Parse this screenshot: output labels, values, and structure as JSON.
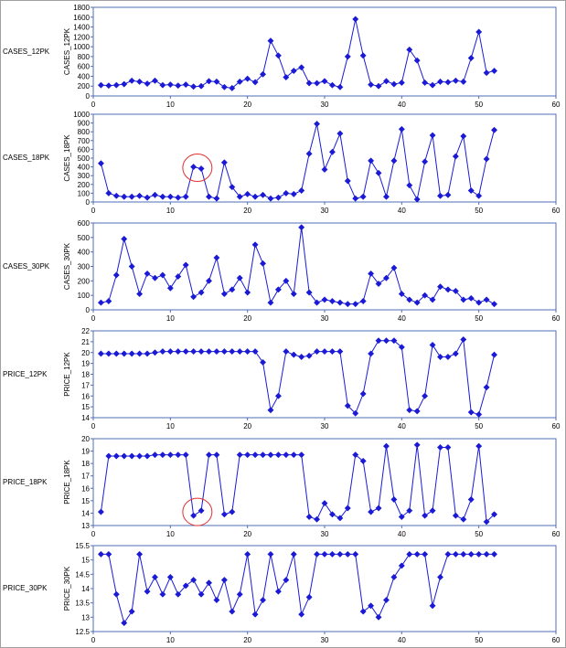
{
  "colors": {
    "series": "#1a1ad6",
    "axis": "#4f6fb8",
    "annotation": "#e03030"
  },
  "chart_data": [
    {
      "type": "line",
      "row_label": "CASES_12PK",
      "ylabel": "CASES_12PK",
      "xlim": [
        0,
        60
      ],
      "xticks": [
        0,
        10,
        20,
        30,
        40,
        50,
        60
      ],
      "ylim": [
        0,
        1800
      ],
      "yticks": [
        0,
        200,
        400,
        600,
        800,
        1000,
        1200,
        1400,
        1600,
        1800
      ],
      "grid": false,
      "x": [
        1,
        2,
        3,
        4,
        5,
        6,
        7,
        8,
        9,
        10,
        11,
        12,
        13,
        14,
        15,
        16,
        17,
        18,
        19,
        20,
        21,
        22,
        23,
        24,
        25,
        26,
        27,
        28,
        29,
        30,
        31,
        32,
        33,
        34,
        35,
        36,
        37,
        38,
        39,
        40,
        41,
        42,
        43,
        44,
        45,
        46,
        47,
        48,
        49,
        50,
        51,
        52
      ],
      "y": [
        220,
        210,
        220,
        240,
        310,
        290,
        250,
        310,
        220,
        230,
        210,
        230,
        190,
        200,
        300,
        290,
        180,
        160,
        290,
        350,
        280,
        440,
        1120,
        820,
        380,
        510,
        580,
        260,
        260,
        300,
        220,
        180,
        800,
        1560,
        820,
        230,
        200,
        300,
        240,
        270,
        940,
        720,
        270,
        220,
        290,
        280,
        310,
        290,
        770,
        1300,
        470,
        510
      ]
    },
    {
      "type": "line",
      "row_label": "CASES_18PK",
      "ylabel": "CASES_18PK",
      "xlim": [
        0,
        60
      ],
      "xticks": [
        0,
        10,
        20,
        30,
        40,
        50,
        60
      ],
      "ylim": [
        0,
        1000
      ],
      "yticks": [
        0,
        100,
        200,
        300,
        400,
        500,
        600,
        700,
        800,
        900,
        1000
      ],
      "grid": false,
      "circle_x": 13.5,
      "circle_y": 390,
      "x": [
        1,
        2,
        3,
        4,
        5,
        6,
        7,
        8,
        9,
        10,
        11,
        12,
        13,
        14,
        15,
        16,
        17,
        18,
        19,
        20,
        21,
        22,
        23,
        24,
        25,
        26,
        27,
        28,
        29,
        30,
        31,
        32,
        33,
        34,
        35,
        36,
        37,
        38,
        39,
        40,
        41,
        42,
        43,
        44,
        45,
        46,
        47,
        48,
        49,
        50,
        51,
        52
      ],
      "y": [
        440,
        100,
        70,
        60,
        60,
        70,
        50,
        80,
        60,
        60,
        50,
        60,
        400,
        380,
        60,
        40,
        450,
        170,
        60,
        90,
        60,
        80,
        40,
        50,
        100,
        90,
        130,
        550,
        890,
        370,
        570,
        780,
        240,
        40,
        60,
        470,
        330,
        60,
        470,
        830,
        190,
        30,
        460,
        760,
        70,
        80,
        520,
        750,
        130,
        70,
        490,
        820
      ]
    },
    {
      "type": "line",
      "row_label": "CASES_30PK",
      "ylabel": "CASES_30PK",
      "xlim": [
        0,
        60
      ],
      "xticks": [
        0,
        10,
        20,
        30,
        40,
        50,
        60
      ],
      "ylim": [
        0,
        600
      ],
      "yticks": [
        0,
        100,
        200,
        300,
        400,
        500,
        600
      ],
      "grid": false,
      "x": [
        1,
        2,
        3,
        4,
        5,
        6,
        7,
        8,
        9,
        10,
        11,
        12,
        13,
        14,
        15,
        16,
        17,
        18,
        19,
        20,
        21,
        22,
        23,
        24,
        25,
        26,
        27,
        28,
        29,
        30,
        31,
        32,
        33,
        34,
        35,
        36,
        37,
        38,
        39,
        40,
        41,
        42,
        43,
        44,
        45,
        46,
        47,
        48,
        49,
        50,
        51,
        52
      ],
      "y": [
        50,
        60,
        240,
        490,
        300,
        110,
        250,
        220,
        240,
        150,
        230,
        310,
        90,
        120,
        200,
        360,
        110,
        140,
        220,
        120,
        450,
        320,
        50,
        140,
        200,
        110,
        570,
        120,
        50,
        70,
        60,
        50,
        40,
        40,
        60,
        250,
        180,
        220,
        290,
        110,
        70,
        50,
        100,
        70,
        160,
        140,
        130,
        70,
        80,
        50,
        70,
        40
      ]
    },
    {
      "type": "line",
      "row_label": "PRICE_12PK",
      "ylabel": "PRICE_12PK",
      "xlim": [
        0,
        60
      ],
      "xticks": [
        0,
        10,
        20,
        30,
        40,
        50,
        60
      ],
      "ylim": [
        14,
        22
      ],
      "yticks": [
        14,
        15,
        16,
        17,
        18,
        19,
        20,
        21,
        22
      ],
      "grid": false,
      "x": [
        1,
        2,
        3,
        4,
        5,
        6,
        7,
        8,
        9,
        10,
        11,
        12,
        13,
        14,
        15,
        16,
        17,
        18,
        19,
        20,
        21,
        22,
        23,
        24,
        25,
        26,
        27,
        28,
        29,
        30,
        31,
        32,
        33,
        34,
        35,
        36,
        37,
        38,
        39,
        40,
        41,
        42,
        43,
        44,
        45,
        46,
        47,
        48,
        49,
        50,
        51,
        52
      ],
      "y": [
        19.9,
        19.9,
        19.9,
        19.9,
        19.9,
        19.9,
        19.9,
        20.0,
        20.1,
        20.1,
        20.1,
        20.1,
        20.1,
        20.1,
        20.1,
        20.1,
        20.1,
        20.1,
        20.1,
        20.1,
        20.1,
        19.1,
        14.7,
        16.0,
        20.1,
        19.8,
        19.6,
        19.7,
        20.1,
        20.1,
        20.1,
        20.1,
        15.1,
        14.4,
        16.2,
        19.9,
        21.1,
        21.1,
        21.1,
        20.5,
        14.7,
        14.6,
        16.0,
        20.7,
        19.6,
        19.6,
        19.9,
        21.2,
        14.5,
        14.3,
        16.8,
        19.8
      ]
    },
    {
      "type": "line",
      "row_label": "PRICE_18PK",
      "ylabel": "PRICE_18PK",
      "xlim": [
        0,
        60
      ],
      "xticks": [
        0,
        10,
        20,
        30,
        40,
        50,
        60
      ],
      "ylim": [
        13,
        20
      ],
      "yticks": [
        13,
        14,
        15,
        16,
        17,
        18,
        19,
        20
      ],
      "grid": false,
      "circle_x": 13.5,
      "circle_y": 14.1,
      "x": [
        1,
        2,
        3,
        4,
        5,
        6,
        7,
        8,
        9,
        10,
        11,
        12,
        13,
        14,
        15,
        16,
        17,
        18,
        19,
        20,
        21,
        22,
        23,
        24,
        25,
        26,
        27,
        28,
        29,
        30,
        31,
        32,
        33,
        34,
        35,
        36,
        37,
        38,
        39,
        40,
        41,
        42,
        43,
        44,
        45,
        46,
        47,
        48,
        49,
        50,
        51,
        52
      ],
      "y": [
        14.1,
        18.6,
        18.6,
        18.6,
        18.6,
        18.6,
        18.6,
        18.7,
        18.7,
        18.7,
        18.7,
        18.7,
        13.8,
        14.2,
        18.7,
        18.7,
        13.9,
        14.1,
        18.7,
        18.7,
        18.7,
        18.7,
        18.7,
        18.7,
        18.7,
        18.7,
        18.7,
        13.7,
        13.5,
        14.8,
        13.9,
        13.6,
        14.4,
        18.7,
        18.2,
        14.1,
        14.4,
        19.4,
        15.1,
        13.7,
        14.2,
        19.5,
        13.8,
        14.2,
        19.3,
        19.3,
        13.8,
        13.5,
        15.1,
        19.4,
        13.3,
        13.9
      ]
    },
    {
      "type": "line",
      "row_label": "PRICE_30PK",
      "ylabel": "PRICE_30PK",
      "xlim": [
        0,
        60
      ],
      "xticks": [
        0,
        10,
        20,
        30,
        40,
        50,
        60
      ],
      "ylim": [
        12.5,
        15.5
      ],
      "yticks": [
        12.5,
        13,
        13.5,
        14,
        14.5,
        15,
        15.5
      ],
      "grid": false,
      "x": [
        1,
        2,
        3,
        4,
        5,
        6,
        7,
        8,
        9,
        10,
        11,
        12,
        13,
        14,
        15,
        16,
        17,
        18,
        19,
        20,
        21,
        22,
        23,
        24,
        25,
        26,
        27,
        28,
        29,
        30,
        31,
        32,
        33,
        34,
        35,
        36,
        37,
        38,
        39,
        40,
        41,
        42,
        43,
        44,
        45,
        46,
        47,
        48,
        49,
        50,
        51,
        52
      ],
      "y": [
        15.2,
        15.2,
        13.8,
        12.8,
        13.2,
        15.2,
        13.9,
        14.4,
        13.8,
        14.4,
        13.8,
        14.1,
        14.3,
        13.8,
        14.2,
        13.6,
        14.3,
        13.2,
        13.8,
        15.2,
        13.1,
        13.6,
        15.2,
        13.9,
        14.3,
        15.2,
        13.1,
        13.7,
        15.2,
        15.2,
        15.2,
        15.2,
        15.2,
        15.2,
        13.2,
        13.4,
        13.0,
        13.6,
        14.4,
        14.8,
        15.2,
        15.2,
        15.2,
        13.4,
        14.4,
        15.2,
        15.2,
        15.2,
        15.2,
        15.2,
        15.2,
        15.2
      ]
    }
  ]
}
